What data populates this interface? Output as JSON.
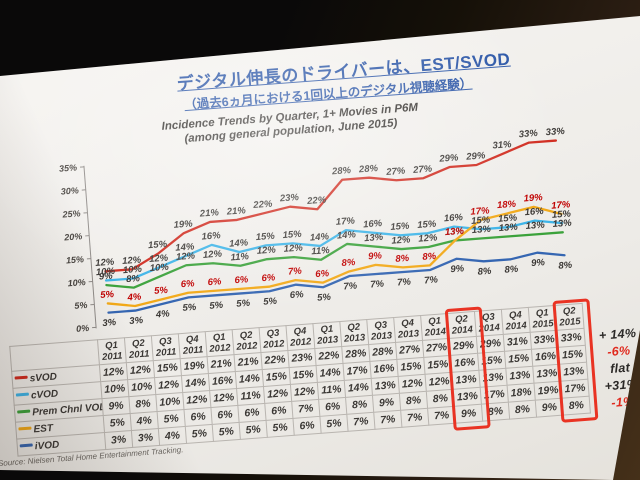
{
  "slide": {
    "title": "デジタル伸長のドライバーは、EST/SVOD",
    "subtitle": "（過去6ヵ月における1回以上のデジタル視聴経験）",
    "source": "Source: Nielsen Total Home Entertainment Tracking."
  },
  "chart_data": {
    "type": "line",
    "title": "Incidence Trends by Quarter, 1+ Movies in P6M",
    "subtitle": "(among general population, June 2015)",
    "ylim": [
      0,
      35
    ],
    "ytick_labels": [
      "0%",
      "5%",
      "10%",
      "15%",
      "20%",
      "25%",
      "30%",
      "35%"
    ],
    "grid": false,
    "legend_position": "table-left",
    "categories": [
      {
        "quarter": "Q1",
        "year": "2011"
      },
      {
        "quarter": "Q2",
        "year": "2011"
      },
      {
        "quarter": "Q3",
        "year": "2011"
      },
      {
        "quarter": "Q4",
        "year": "2011"
      },
      {
        "quarter": "Q1",
        "year": "2012"
      },
      {
        "quarter": "Q2",
        "year": "2012"
      },
      {
        "quarter": "Q3",
        "year": "2012"
      },
      {
        "quarter": "Q4",
        "year": "2012"
      },
      {
        "quarter": "Q1",
        "year": "2013"
      },
      {
        "quarter": "Q2",
        "year": "2013"
      },
      {
        "quarter": "Q3",
        "year": "2013"
      },
      {
        "quarter": "Q4",
        "year": "2013"
      },
      {
        "quarter": "Q1",
        "year": "2014"
      },
      {
        "quarter": "Q2",
        "year": "2014"
      },
      {
        "quarter": "Q3",
        "year": "2014"
      },
      {
        "quarter": "Q4",
        "year": "2014"
      },
      {
        "quarter": "Q1",
        "year": "2015"
      },
      {
        "quarter": "Q2",
        "year": "2015"
      }
    ],
    "series": [
      {
        "name": "sVOD",
        "color": "#d02a1e",
        "label_color": "#3b3835",
        "values": [
          12,
          12,
          15,
          19,
          21,
          21,
          22,
          23,
          22,
          28,
          28,
          27,
          27,
          29,
          29,
          31,
          33,
          33
        ],
        "trend": "+ 14%",
        "trend_color": "#2b2927"
      },
      {
        "name": "cVOD",
        "color": "#3db4e8",
        "label_color": "#3b3835",
        "values": [
          10,
          10,
          12,
          14,
          16,
          14,
          15,
          15,
          14,
          17,
          16,
          15,
          15,
          16,
          15,
          15,
          16,
          15
        ],
        "trend": "-6%",
        "trend_color": "#e02a1e"
      },
      {
        "name": "Prem Chnl VOD",
        "color": "#3ba23b",
        "label_color": "#3b3835",
        "values": [
          9,
          8,
          10,
          12,
          12,
          11,
          12,
          12,
          11,
          14,
          13,
          12,
          12,
          13,
          13,
          13,
          13,
          13
        ],
        "trend": "flat",
        "trend_color": "#2b2927"
      },
      {
        "name": "EST",
        "color": "#f2a918",
        "label_color": "#c00000",
        "values": [
          5,
          4,
          5,
          6,
          6,
          6,
          6,
          7,
          6,
          8,
          9,
          8,
          8,
          13,
          17,
          18,
          19,
          17
        ],
        "trend": "+31%",
        "trend_color": "#2b2927"
      },
      {
        "name": "iVOD",
        "color": "#3566b2",
        "label_color": "#3b3835",
        "label_position": "below",
        "values": [
          3,
          3,
          4,
          5,
          5,
          5,
          5,
          6,
          5,
          7,
          7,
          7,
          7,
          9,
          8,
          8,
          9,
          8
        ],
        "trend": "-1%",
        "trend_color": "#e02a1e"
      }
    ],
    "highlighted_columns": [
      13,
      17
    ],
    "highlight_color": "#e93323"
  }
}
